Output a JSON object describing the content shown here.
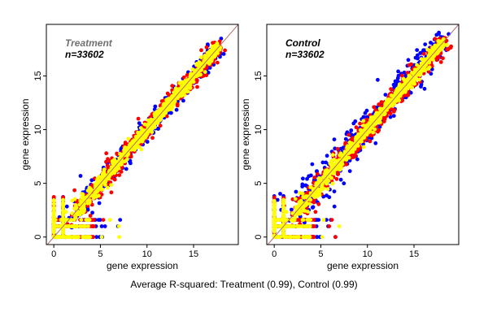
{
  "caption": "Average R-squared: Treatment (0.99), Control (0.99)",
  "colors": {
    "outer": "#0000FF",
    "middle": "#FF0000",
    "inner": "#FFFF00",
    "diagonal": "#B36B6B"
  },
  "chart_data": [
    {
      "type": "scatter",
      "title": "Treatment",
      "subtitle": "n=33602",
      "title_color": "#707070",
      "xlabel": "gene expression",
      "ylabel": "gene expression",
      "xlim": [
        -0.8,
        19.8
      ],
      "ylim": [
        -0.7,
        19.8
      ],
      "xticks": [
        "0",
        "5",
        "10",
        "15"
      ],
      "yticks": [
        "0",
        "5",
        "10",
        "15"
      ],
      "grid": false,
      "reference_line": "y = x",
      "point_range": [
        0,
        18.2
      ]
    },
    {
      "type": "scatter",
      "title": "Control",
      "subtitle": "n=33602",
      "title_color": "#000000",
      "xlabel": "gene expression",
      "ylabel": "gene expression",
      "xlim": [
        -0.8,
        19.8
      ],
      "ylim": [
        -0.7,
        19.8
      ],
      "xticks": [
        "0",
        "5",
        "10",
        "15"
      ],
      "yticks": [
        "0",
        "5",
        "10",
        "15"
      ],
      "grid": false,
      "reference_line": "y = x",
      "point_range": [
        0,
        18.7
      ]
    }
  ]
}
